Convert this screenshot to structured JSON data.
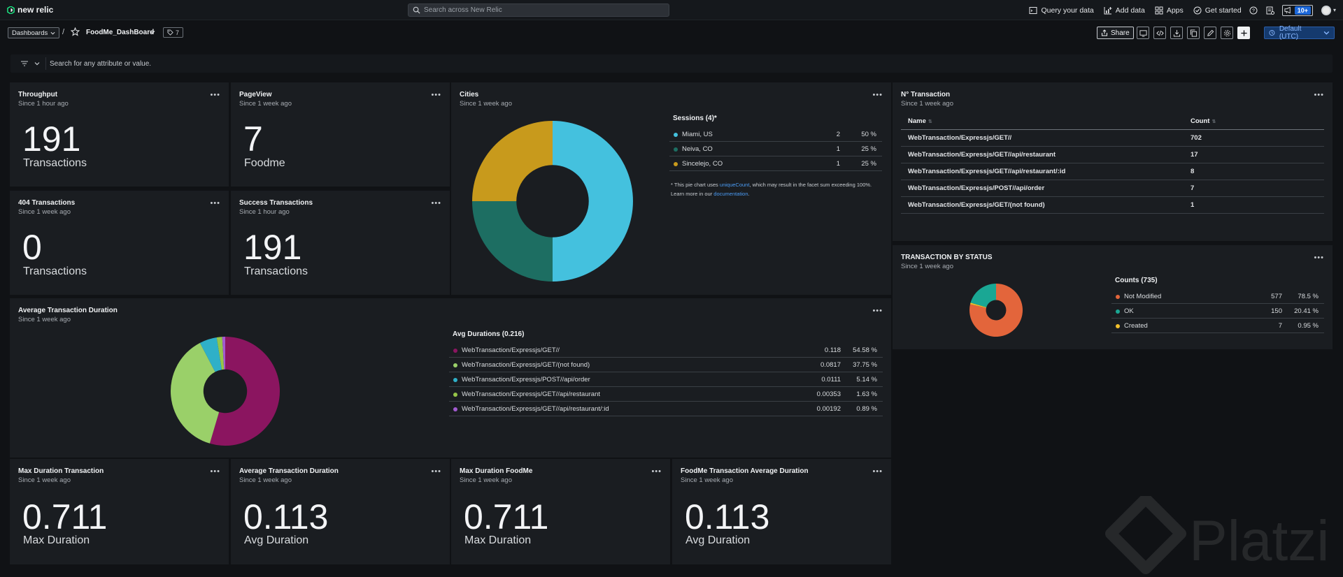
{
  "topbar": {
    "logo_text": "new relic",
    "search_placeholder": "Search across New Relic",
    "nav": {
      "query": "Query your data",
      "add_data": "Add data",
      "apps": "Apps",
      "get_started": "Get started"
    },
    "notifications_badge": "10+"
  },
  "dashbar": {
    "dashboards_label": "Dashboards",
    "separator": "/",
    "dashboard_name": "FoodMe_DashBoard",
    "tag_count": "7",
    "share_label": "Share",
    "timezone_label": "Default (UTC)"
  },
  "filter": {
    "placeholder": "Search for any attribute or value."
  },
  "widgets": {
    "throughput": {
      "title": "Throughput",
      "since": "Since 1 hour ago",
      "value": "191",
      "unit": "Transactions"
    },
    "pageview": {
      "title": "PageView",
      "since": "Since 1 week ago",
      "value": "7",
      "unit": "Foodme"
    },
    "t404": {
      "title": "404 Transactions",
      "since": "Since 1 week ago",
      "value": "0",
      "unit": "Transactions"
    },
    "success": {
      "title": "Success Transactions",
      "since": "Since 1 hour ago",
      "value": "191",
      "unit": "Transactions"
    },
    "cities": {
      "title": "Cities",
      "since": "Since 1 week ago",
      "legend_title": "Sessions (4)*",
      "footnote_pre": "* This pie chart uses",
      "footnote_link": "uniqueCount",
      "footnote_post": ", which may result in the facet sum exceeding 100%.",
      "footnote_line2_pre": "Learn more in our",
      "footnote_link2": "documentation",
      "footnote_line2_post": "."
    },
    "ntx": {
      "title": "N° Transaction",
      "since": "Since 1 week ago",
      "col_name": "Name",
      "col_count": "Count",
      "rows": [
        {
          "name": "WebTransaction/Expressjs/GET//",
          "count": "702"
        },
        {
          "name": "WebTransaction/Expressjs/GET//api/restaurant",
          "count": "17"
        },
        {
          "name": "WebTransaction/Expressjs/GET//api/restaurant/:id",
          "count": "8"
        },
        {
          "name": "WebTransaction/Expressjs/POST//api/order",
          "count": "7"
        },
        {
          "name": "WebTransaction/Expressjs/GET/(not found)",
          "count": "1"
        }
      ]
    },
    "status": {
      "title": "TRANSACTION BY STATUS",
      "since": "Since 1 week ago",
      "legend_title": "Counts (735)"
    },
    "avgdur": {
      "title": "Average Transaction Duration",
      "since": "Since 1 week ago",
      "legend_title": "Avg Durations (0.216)"
    },
    "maxdur": {
      "title": "Max Duration Transaction",
      "since": "Since 1 week ago",
      "value": "0.711",
      "unit": "Max Duration"
    },
    "avgdur2": {
      "title": "Average Transaction Duration",
      "since": "Since 1 week ago",
      "value": "0.113",
      "unit": "Avg Duration"
    },
    "maxfood": {
      "title": "Max Duration FoodMe",
      "since": "Since 1 week ago",
      "value": "0.711",
      "unit": "Max Duration"
    },
    "foodavg": {
      "title": "FoodMe Transaction Average Duration",
      "since": "Since 1 week ago",
      "value": "0.113",
      "unit": "Avg Duration"
    }
  },
  "chart_data": [
    {
      "type": "pie",
      "title": "Cities",
      "categories": [
        "Miami, US",
        "Neiva, CO",
        "Sincelejo, CO"
      ],
      "values": [
        2,
        1,
        1
      ],
      "percent_labels": [
        "50 %",
        "25 %",
        "25 %"
      ],
      "colors": [
        "#44c1de",
        "#1d6e62",
        "#c89a1c"
      ],
      "donut": true
    },
    {
      "type": "pie",
      "title": "TRANSACTION BY STATUS",
      "categories": [
        "Not Modified",
        "OK",
        "Created"
      ],
      "values": [
        577,
        150,
        7
      ],
      "percent_labels": [
        "78.5 %",
        "20.41 %",
        "0.95 %"
      ],
      "colors": [
        "#e3653b",
        "#1aa794",
        "#f2c02c"
      ],
      "donut": true
    },
    {
      "type": "pie",
      "title": "Average Transaction Duration",
      "categories": [
        "WebTransaction/Expressjs/GET//",
        "WebTransaction/Expressjs/GET/(not found)",
        "WebTransaction/Expressjs/POST//api/order",
        "WebTransaction/Expressjs/GET//api/restaurant",
        "WebTransaction/Expressjs/GET//api/restaurant/:id"
      ],
      "values": [
        0.118,
        0.0817,
        0.0111,
        0.00353,
        0.00192
      ],
      "value_labels": [
        "0.118",
        "0.0817",
        "0.0111",
        "0.00353",
        "0.00192"
      ],
      "percent_labels": [
        "54.58 %",
        "37.75 %",
        "5.14 %",
        "1.63 %",
        "0.89 %"
      ],
      "colors": [
        "#8b1560",
        "#9ad069",
        "#2fb0c8",
        "#96c548",
        "#a25bd0"
      ],
      "donut": true
    }
  ],
  "watermark_text": "Platzi",
  "colors": {
    "accent": "#1c67d9",
    "panel": "#1a1d21",
    "background": "#101215"
  }
}
